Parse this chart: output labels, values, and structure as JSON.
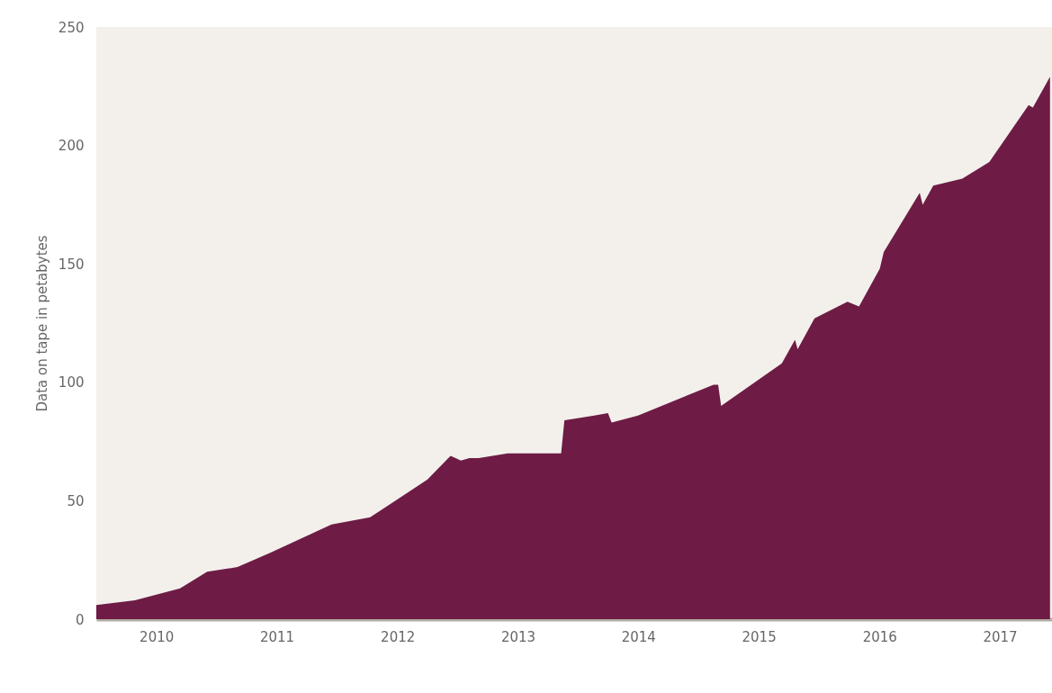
{
  "chart_data": {
    "type": "area",
    "ylabel": "Data on tape in petabytes",
    "x": [
      "2010-01-01",
      "2010-04-28",
      "2010-09-12",
      "2010-12-03",
      "2011-03-05",
      "2011-06-12",
      "2011-12-15",
      "2012-04-10",
      "2012-06-25",
      "2012-10-01",
      "2012-12-10",
      "2013-01-10",
      "2013-02-05",
      "2013-03-05",
      "2013-06-01",
      "2013-11-10",
      "2013-11-20",
      "2014-02-18",
      "2014-04-01",
      "2014-04-12",
      "2014-07-01",
      "2015-02-15",
      "2015-03-01",
      "2015-03-10",
      "2015-09-10",
      "2015-10-20",
      "2015-10-28",
      "2015-12-18",
      "2016-03-27",
      "2016-05-01",
      "2016-07-03",
      "2016-07-15",
      "2016-11-01",
      "2016-11-10",
      "2016-12-12",
      "2017-03-10",
      "2017-05-31",
      "2017-09-27",
      "2017-10-10",
      "2017-12-01"
    ],
    "series": [
      {
        "color": "#6e1c45",
        "values": [
          6,
          8,
          13,
          20,
          22,
          28,
          40,
          43,
          50,
          59,
          69,
          67,
          68,
          68,
          70,
          70,
          84,
          86,
          87,
          83,
          86,
          99,
          99,
          90,
          108,
          118,
          114,
          127,
          134,
          132,
          148,
          155,
          180,
          175,
          183,
          186,
          193,
          217,
          216,
          229
        ]
      }
    ],
    "xlim": [
      "2010-01-01",
      "2017-12-07"
    ],
    "xticks": [
      {
        "value": "2010-07-02",
        "label": "2010"
      },
      {
        "value": "2011-07-02",
        "label": "2011"
      },
      {
        "value": "2012-07-02",
        "label": "2012"
      },
      {
        "value": "2013-07-02",
        "label": "2013"
      },
      {
        "value": "2014-07-02",
        "label": "2014"
      },
      {
        "value": "2015-07-02",
        "label": "2015"
      },
      {
        "value": "2016-07-02",
        "label": "2016"
      },
      {
        "value": "2017-07-02",
        "label": "2017"
      }
    ],
    "ylim": [
      0,
      250
    ],
    "yticks": [
      0,
      50,
      100,
      150,
      200,
      250
    ],
    "grid": false
  }
}
